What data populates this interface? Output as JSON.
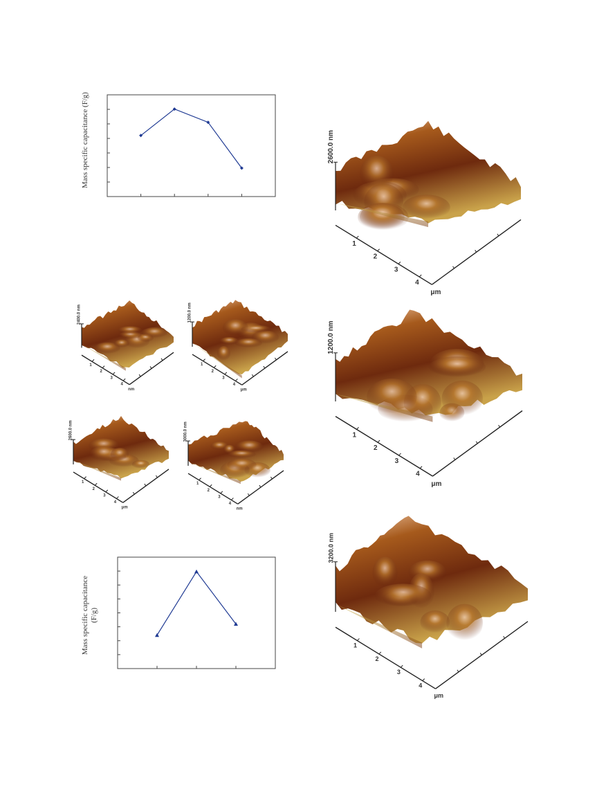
{
  "charts": {
    "top": {
      "ylabel": "Mass specific capacitance (F/g)"
    },
    "bottom": {
      "ylabel_line1": "Mass specific capacitance",
      "ylabel_line2": "(F/g)"
    }
  },
  "chart_data": [
    {
      "type": "line",
      "title": "",
      "xlabel": "",
      "ylabel": "Mass specific capacitance (F/g)",
      "x": [
        1,
        2,
        3,
        4
      ],
      "values": [
        6.0,
        8.6,
        7.3,
        2.8
      ],
      "xlim": [
        0,
        5
      ],
      "ylim": [
        0,
        10
      ],
      "grid": false,
      "marker": "diamond",
      "color": "#1f3a93"
    },
    {
      "type": "line",
      "title": "",
      "xlabel": "",
      "ylabel": "Mass specific capacitance (F/g)",
      "x": [
        1,
        2,
        3
      ],
      "values": [
        3.0,
        8.7,
        4.0
      ],
      "xlim": [
        0,
        4
      ],
      "ylim": [
        0,
        10
      ],
      "grid": false,
      "marker": "triangle",
      "color": "#1f3a93"
    }
  ],
  "afm": {
    "top_right": {
      "z_label": "2600.0 nm",
      "x_ticks": [
        "1",
        "2",
        "3",
        "4"
      ],
      "unit": "μm"
    },
    "mid_right": {
      "z_label": "1200.0 nm",
      "x_ticks": [
        "1",
        "2",
        "3",
        "4"
      ],
      "unit": "μm"
    },
    "bottom_right": {
      "z_label": "3200.0 nm",
      "x_ticks": [
        "1",
        "2",
        "3",
        "4"
      ],
      "unit": "μm"
    },
    "small_a": {
      "z_label": "2400.0 nm",
      "x_ticks": [
        "1",
        "2",
        "3",
        "4"
      ],
      "unit": "nm"
    },
    "small_b": {
      "z_label": "1200.0 nm",
      "x_ticks": [
        "1",
        "2",
        "3",
        "4"
      ],
      "unit": "μm"
    },
    "small_c": {
      "z_label": "2600.0 nm",
      "x_ticks": [
        "1",
        "2",
        "3",
        "4"
      ],
      "unit": "μm"
    },
    "small_d": {
      "z_label": "3000.0 nm",
      "x_ticks": [
        "1",
        "2",
        "3",
        "4"
      ],
      "unit": "nm"
    }
  },
  "colors": {
    "line": "#1f3a93",
    "surface_dark": "#5a1a0c",
    "surface_mid": "#a55418",
    "surface_light": "#e8c88a"
  }
}
